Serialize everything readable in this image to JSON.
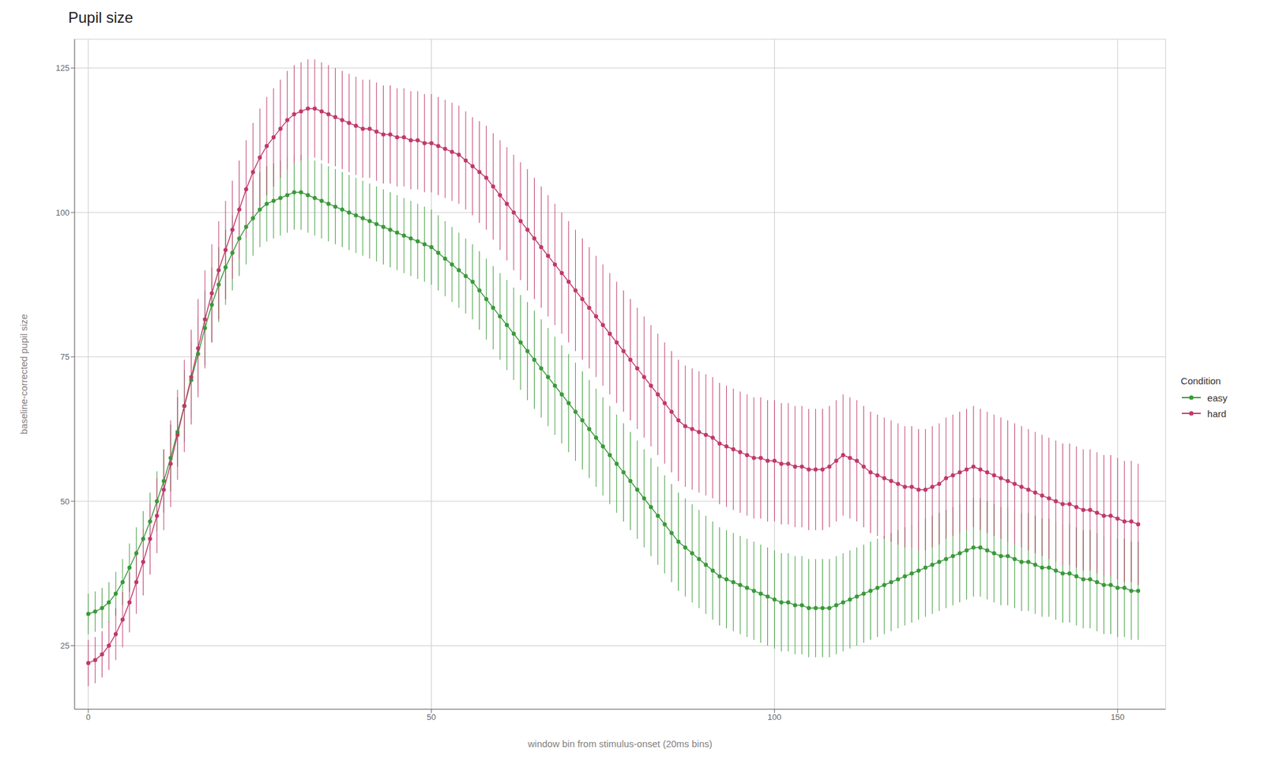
{
  "chart_data": {
    "type": "line",
    "title": "Pupil size",
    "x_label": "window bin from stimulus-onset (20ms bins)",
    "y_label": "baseline-corrected pupil size",
    "legend_title": "Condition",
    "legend": "right",
    "grid": true,
    "xlim": [
      -2,
      157
    ],
    "ylim": [
      14,
      130
    ],
    "xticks": [
      0,
      50,
      100,
      150
    ],
    "yticks": [
      25,
      50,
      75,
      100,
      125
    ],
    "x": [
      0,
      1,
      2,
      3,
      4,
      5,
      6,
      7,
      8,
      9,
      10,
      11,
      12,
      13,
      14,
      15,
      16,
      17,
      18,
      19,
      20,
      21,
      22,
      23,
      24,
      25,
      26,
      27,
      28,
      29,
      30,
      31,
      32,
      33,
      34,
      35,
      36,
      37,
      38,
      39,
      40,
      41,
      42,
      43,
      44,
      45,
      46,
      47,
      48,
      49,
      50,
      51,
      52,
      53,
      54,
      55,
      56,
      57,
      58,
      59,
      60,
      61,
      62,
      63,
      64,
      65,
      66,
      67,
      68,
      69,
      70,
      71,
      72,
      73,
      74,
      75,
      76,
      77,
      78,
      79,
      80,
      81,
      82,
      83,
      84,
      85,
      86,
      87,
      88,
      89,
      90,
      91,
      92,
      93,
      94,
      95,
      96,
      97,
      98,
      99,
      100,
      101,
      102,
      103,
      104,
      105,
      106,
      107,
      108,
      109,
      110,
      111,
      112,
      113,
      114,
      115,
      116,
      117,
      118,
      119,
      120,
      121,
      122,
      123,
      124,
      125,
      126,
      127,
      128,
      129,
      130,
      131,
      132,
      133,
      134,
      135,
      136,
      137,
      138,
      139,
      140,
      141,
      142,
      143,
      144,
      145,
      146,
      147,
      148,
      149,
      150,
      151,
      152,
      153
    ],
    "series": [
      {
        "name": "easy",
        "color": "#3A9A3A",
        "marker": "circle",
        "line_style": "solid",
        "values": [
          30.5,
          30.9,
          31.5,
          32.5,
          34.0,
          36.0,
          38.5,
          41.0,
          43.5,
          46.5,
          50.0,
          53.5,
          57.5,
          62.0,
          66.5,
          71.0,
          75.5,
          80.0,
          84.0,
          87.5,
          90.5,
          93.0,
          95.5,
          97.5,
          99.0,
          100.5,
          101.5,
          102.0,
          102.5,
          103.0,
          103.5,
          103.5,
          103.0,
          102.5,
          102.0,
          101.5,
          101.0,
          100.5,
          100.0,
          99.5,
          99.0,
          98.5,
          98.0,
          97.5,
          97.0,
          96.5,
          96.0,
          95.5,
          95.0,
          94.5,
          94.0,
          93.0,
          92.0,
          91.0,
          90.0,
          89.0,
          88.0,
          86.5,
          85.0,
          83.5,
          82.0,
          80.5,
          79.0,
          77.5,
          76.0,
          74.5,
          73.0,
          71.5,
          70.0,
          68.5,
          67.0,
          65.5,
          64.0,
          62.5,
          61.0,
          59.5,
          58.0,
          56.5,
          55.0,
          53.5,
          52.0,
          50.5,
          49.0,
          47.5,
          46.0,
          44.5,
          43.0,
          42.0,
          41.0,
          40.0,
          39.0,
          38.0,
          37.0,
          36.5,
          36.0,
          35.5,
          35.0,
          34.5,
          34.0,
          33.5,
          33.0,
          32.5,
          32.5,
          32.0,
          32.0,
          31.5,
          31.5,
          31.5,
          31.5,
          32.0,
          32.5,
          33.0,
          33.5,
          34.0,
          34.5,
          35.0,
          35.5,
          36.0,
          36.5,
          37.0,
          37.5,
          38.0,
          38.5,
          39.0,
          39.5,
          40.0,
          40.5,
          41.0,
          41.5,
          42.0,
          42.0,
          41.5,
          41.0,
          40.5,
          40.5,
          40.0,
          39.5,
          39.5,
          39.0,
          38.5,
          38.5,
          38.0,
          37.5,
          37.5,
          37.0,
          36.5,
          36.5,
          36.0,
          35.5,
          35.5,
          35.0,
          35.0,
          34.5,
          34.5
        ],
        "errors": [
          3.5,
          3.5,
          3.5,
          3.5,
          3.8,
          4.0,
          4.2,
          4.5,
          4.8,
          5.0,
          5.2,
          5.5,
          5.8,
          6.0,
          6.2,
          6.5,
          6.5,
          6.5,
          6.5,
          6.5,
          6.5,
          6.5,
          6.5,
          6.5,
          6.5,
          6.5,
          6.5,
          6.5,
          6.5,
          6.5,
          6.5,
          6.5,
          6.5,
          6.5,
          6.5,
          6.5,
          6.5,
          6.5,
          6.5,
          6.5,
          6.5,
          6.5,
          6.5,
          6.5,
          6.5,
          6.5,
          6.5,
          6.5,
          6.5,
          6.5,
          6.5,
          6.5,
          6.5,
          6.5,
          6.5,
          6.5,
          6.5,
          6.8,
          7.0,
          7.2,
          7.5,
          7.8,
          8.0,
          8.2,
          8.5,
          8.5,
          8.5,
          8.5,
          8.5,
          8.5,
          8.5,
          8.5,
          8.5,
          8.5,
          8.5,
          8.5,
          8.5,
          8.5,
          8.5,
          8.5,
          8.5,
          8.5,
          8.5,
          8.5,
          8.5,
          8.5,
          8.5,
          8.5,
          8.5,
          8.5,
          8.5,
          8.5,
          8.5,
          8.5,
          8.5,
          8.5,
          8.5,
          8.5,
          8.5,
          8.5,
          8.5,
          8.5,
          8.5,
          8.5,
          8.5,
          8.5,
          8.5,
          8.5,
          8.5,
          8.5,
          8.5,
          8.5,
          8.5,
          8.5,
          8.5,
          8.5,
          8.5,
          8.5,
          8.5,
          8.5,
          8.5,
          8.5,
          8.5,
          8.5,
          8.5,
          8.5,
          8.5,
          8.5,
          8.5,
          8.5,
          8.5,
          8.5,
          8.5,
          8.5,
          8.5,
          8.5,
          8.5,
          8.5,
          8.5,
          8.5,
          8.5,
          8.5,
          8.5,
          8.5,
          8.5,
          8.5,
          8.5,
          8.5,
          8.5,
          8.5,
          8.5,
          8.5,
          8.5,
          8.5
        ]
      },
      {
        "name": "hard",
        "color": "#C0396B",
        "marker": "circle",
        "line_style": "solid",
        "values": [
          22.0,
          22.5,
          23.5,
          25.0,
          27.0,
          29.5,
          32.5,
          36.0,
          39.5,
          43.5,
          47.5,
          52.0,
          56.5,
          61.5,
          66.5,
          71.5,
          76.5,
          81.5,
          86.0,
          90.0,
          93.5,
          97.0,
          100.5,
          104.0,
          107.0,
          109.5,
          111.5,
          113.0,
          114.5,
          116.0,
          117.0,
          117.5,
          118.0,
          118.0,
          117.5,
          117.0,
          116.5,
          116.0,
          115.5,
          115.0,
          114.5,
          114.5,
          114.0,
          113.5,
          113.5,
          113.0,
          113.0,
          112.5,
          112.5,
          112.0,
          112.0,
          111.5,
          111.0,
          110.5,
          110.0,
          109.0,
          108.0,
          107.0,
          106.0,
          104.5,
          103.0,
          101.5,
          100.0,
          98.5,
          97.0,
          95.5,
          94.0,
          92.5,
          91.0,
          89.5,
          88.0,
          86.5,
          85.0,
          83.5,
          82.0,
          80.5,
          79.0,
          77.5,
          76.0,
          74.5,
          73.0,
          71.5,
          70.0,
          68.5,
          67.0,
          65.5,
          64.0,
          63.0,
          62.5,
          62.0,
          61.5,
          61.0,
          60.0,
          59.5,
          59.0,
          58.5,
          58.0,
          57.5,
          57.5,
          57.0,
          57.0,
          56.5,
          56.5,
          56.0,
          56.0,
          55.5,
          55.5,
          55.5,
          56.0,
          57.0,
          58.0,
          57.5,
          57.0,
          56.0,
          55.0,
          54.5,
          54.0,
          53.5,
          53.0,
          52.5,
          52.5,
          52.0,
          52.0,
          52.5,
          53.0,
          54.0,
          54.5,
          55.0,
          55.5,
          56.0,
          55.5,
          55.0,
          54.5,
          54.0,
          53.5,
          53.0,
          52.5,
          52.0,
          51.5,
          51.0,
          50.5,
          50.0,
          49.5,
          49.5,
          49.0,
          48.5,
          48.5,
          48.0,
          47.5,
          47.5,
          47.0,
          46.5,
          46.5,
          46.0
        ],
        "errors": [
          4.0,
          4.0,
          4.0,
          4.2,
          4.5,
          4.8,
          5.2,
          5.5,
          5.8,
          6.2,
          6.5,
          7.0,
          7.5,
          7.8,
          8.0,
          8.2,
          8.5,
          8.5,
          8.5,
          8.5,
          8.5,
          8.5,
          8.5,
          8.5,
          8.5,
          8.5,
          8.5,
          8.5,
          8.5,
          8.5,
          8.5,
          8.5,
          8.5,
          8.5,
          8.5,
          8.5,
          8.5,
          8.5,
          8.5,
          8.5,
          8.5,
          8.5,
          8.5,
          8.5,
          8.5,
          8.5,
          8.5,
          8.5,
          8.5,
          8.5,
          8.5,
          8.5,
          8.5,
          8.5,
          8.5,
          8.5,
          8.5,
          8.8,
          9.0,
          9.2,
          9.5,
          9.8,
          10.0,
          10.2,
          10.5,
          10.5,
          10.5,
          10.5,
          10.5,
          10.5,
          10.5,
          10.5,
          10.5,
          10.5,
          10.5,
          10.5,
          10.5,
          10.5,
          10.5,
          10.5,
          10.5,
          10.5,
          10.5,
          10.5,
          10.5,
          10.5,
          10.5,
          10.5,
          10.5,
          10.5,
          10.5,
          10.5,
          10.5,
          10.5,
          10.5,
          10.5,
          10.5,
          10.5,
          10.5,
          10.5,
          10.5,
          10.5,
          10.5,
          10.5,
          10.5,
          10.5,
          10.5,
          10.5,
          10.5,
          10.5,
          10.5,
          10.5,
          10.5,
          10.5,
          10.5,
          10.5,
          10.5,
          10.5,
          10.5,
          10.5,
          10.5,
          10.5,
          10.5,
          10.5,
          10.5,
          10.5,
          10.5,
          10.5,
          10.5,
          10.5,
          10.5,
          10.5,
          10.5,
          10.5,
          10.5,
          10.5,
          10.5,
          10.5,
          10.5,
          10.5,
          10.5,
          10.5,
          10.5,
          10.5,
          10.5,
          10.5,
          10.5,
          10.5,
          10.5,
          10.5,
          10.5,
          10.5,
          10.5,
          10.5
        ]
      }
    ]
  }
}
